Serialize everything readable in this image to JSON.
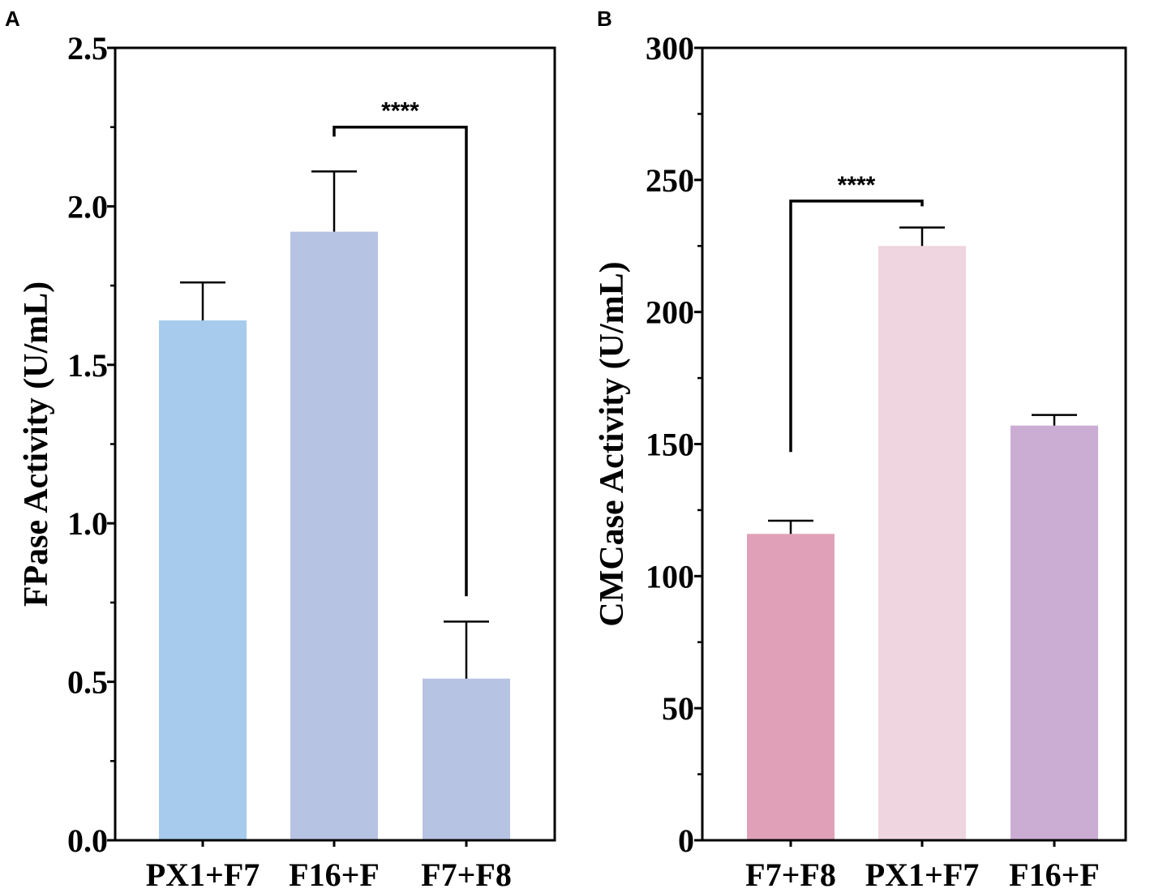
{
  "chart_data": [
    {
      "panel_label": "A",
      "type": "bar",
      "ylabel": "FPase   Activity (U/mL)",
      "xlabel": "",
      "ylim": [
        0,
        2.5
      ],
      "yticks": [
        0.0,
        0.5,
        1.0,
        1.5,
        2.0,
        2.5
      ],
      "ytick_labels": [
        "0.0",
        "0.5",
        "1.0",
        "1.5",
        "2.0",
        "2.5"
      ],
      "categories": [
        "PX1+F7",
        "F16+F",
        "F7+F8"
      ],
      "values": [
        1.64,
        1.92,
        0.51
      ],
      "errors": [
        0.12,
        0.19,
        0.18
      ],
      "colors": [
        "#a6cbec",
        "#b7c3e3",
        "#b7c3e3"
      ],
      "significance": {
        "from": 1,
        "to": 2,
        "label": "****",
        "bracket_y": 2.25,
        "left_end": 2.22,
        "right_end": 0.77
      }
    },
    {
      "panel_label": "B",
      "type": "bar",
      "ylabel": "CMCase   Activity (U/mL)",
      "xlabel": "",
      "ylim": [
        0,
        300
      ],
      "yticks": [
        0,
        50,
        100,
        150,
        200,
        250,
        300
      ],
      "ytick_labels": [
        "0",
        "50",
        "100",
        "150",
        "200",
        "250",
        "300"
      ],
      "categories": [
        "F7+F8",
        "PX1+F7",
        "F16+F"
      ],
      "values": [
        116,
        225,
        157
      ],
      "errors": [
        5,
        7,
        4
      ],
      "colors": [
        "#e0a1b8",
        "#efd5df",
        "#cbadd3"
      ],
      "significance": {
        "from": 0,
        "to": 1,
        "label": "****",
        "bracket_y": 242,
        "left_end": 147,
        "right_end": 240
      }
    }
  ]
}
